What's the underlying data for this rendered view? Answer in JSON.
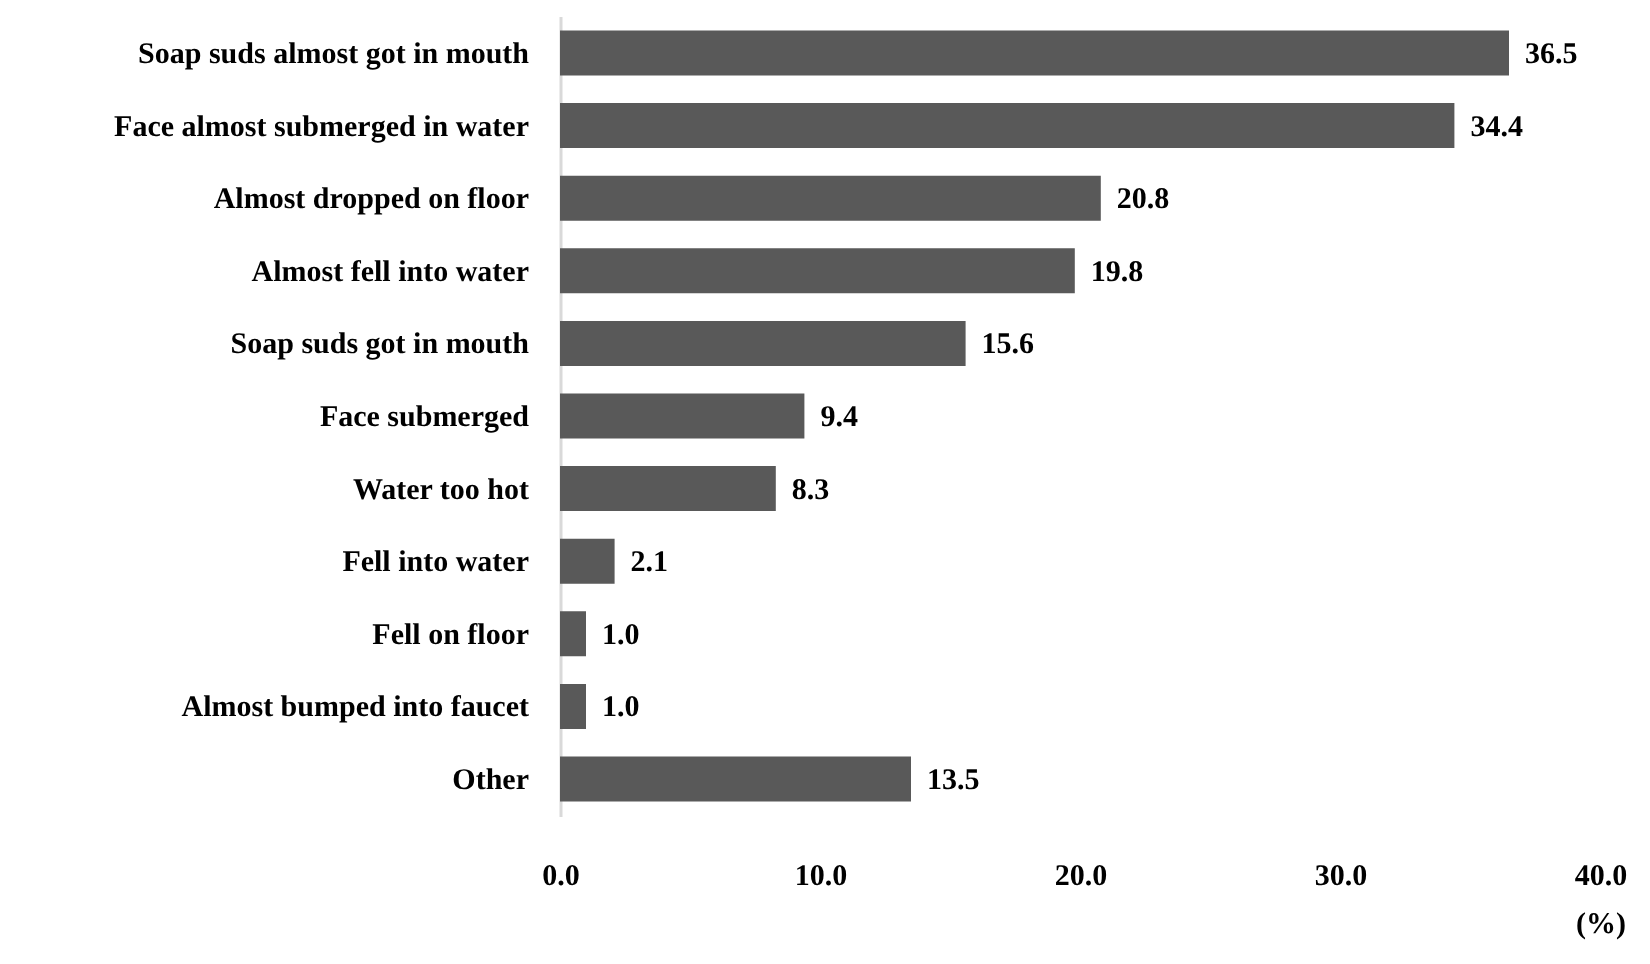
{
  "chart_data": {
    "type": "bar",
    "orientation": "horizontal",
    "xlabel": "(%)",
    "categories": [
      "Soap suds almost got in mouth",
      "Face almost submerged in water",
      "Almost dropped on floor",
      "Almost fell into water",
      "Soap suds got in mouth",
      "Face submerged",
      "Water too hot",
      "Fell into water",
      "Fell on floor",
      "Almost bumped into faucet",
      "Other"
    ],
    "values": [
      36.5,
      34.4,
      20.8,
      19.8,
      15.6,
      9.4,
      8.3,
      2.1,
      1.0,
      1.0,
      13.5
    ],
    "value_labels": [
      "36.5",
      "34.4",
      "20.8",
      "19.8",
      "15.6",
      "9.4",
      "8.3",
      "2.1",
      "1.0",
      "1.0",
      "13.5"
    ],
    "color": "#595959",
    "xlim": [
      0,
      40
    ],
    "xticks": [
      {
        "value": 0,
        "label": "0.0"
      },
      {
        "value": 10,
        "label": "10.0"
      },
      {
        "value": 20,
        "label": "20.0"
      },
      {
        "value": 30,
        "label": "30.0"
      },
      {
        "value": 40,
        "label": "40.0"
      }
    ],
    "grid": false
  }
}
